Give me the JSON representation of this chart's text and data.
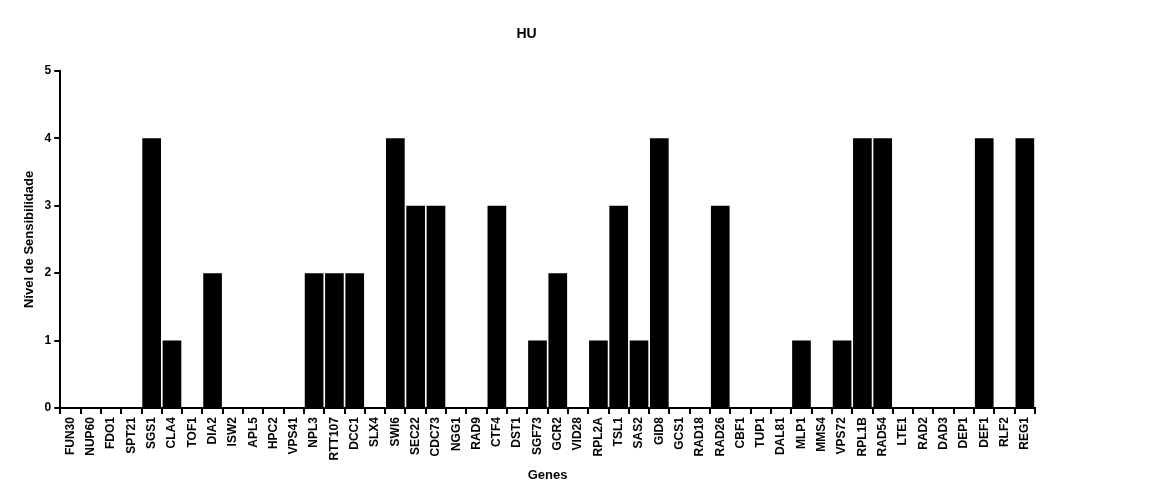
{
  "chart_data": {
    "type": "bar",
    "title": "HU",
    "xlabel": "Genes",
    "ylabel": "Nível de Sensibilidade",
    "categories": [
      "FUN30",
      "NUP60",
      "FDO1",
      "SPT21",
      "SGS1",
      "CLA4",
      "TOF1",
      "DIA2",
      "ISW2",
      "APL5",
      "HPC2",
      "VPS41",
      "NPL3",
      "RTT107",
      "DCC1",
      "SLX4",
      "SWI6",
      "SEC22",
      "CDC73",
      "NGG1",
      "RAD9",
      "CTF4",
      "DST1",
      "SGF73",
      "GCR2",
      "VID28",
      "RPL2A",
      "TSL1",
      "SAS2",
      "GID8",
      "GCS1",
      "RAD18",
      "RAD26",
      "CBF1",
      "TUP1",
      "DAL81",
      "MLP1",
      "MMS4",
      "VPS72",
      "RPL1B",
      "RAD54",
      "LTE1",
      "RAD2",
      "DAD3",
      "DEP1",
      "DEF1",
      "RLF2",
      "REG1"
    ],
    "values": [
      0,
      0,
      0,
      0,
      4,
      1,
      0,
      2,
      0,
      0,
      0,
      0,
      2,
      2,
      2,
      0,
      4,
      3,
      3,
      0,
      0,
      3,
      0,
      1,
      2,
      0,
      1,
      3,
      1,
      4,
      0,
      0,
      3,
      0,
      0,
      0,
      1,
      0,
      1,
      4,
      4,
      0,
      0,
      0,
      0,
      4,
      0,
      4
    ],
    "color": "#000000",
    "ylim": [
      0,
      5
    ],
    "yticks": [
      0,
      1,
      2,
      3,
      4,
      5
    ],
    "grid": false,
    "legend": false
  }
}
